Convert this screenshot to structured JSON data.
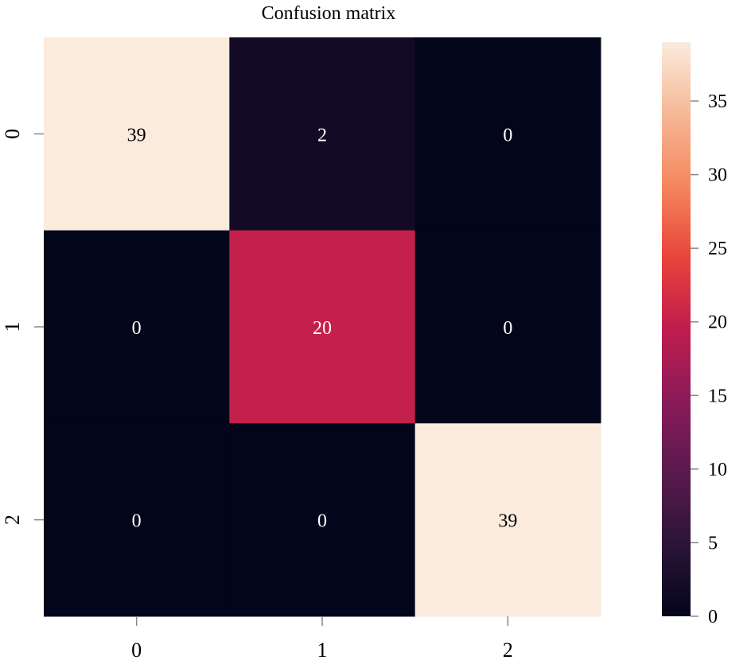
{
  "chart_data": {
    "type": "heatmap",
    "title": "Confusion matrix",
    "xlabel": "",
    "ylabel": "",
    "row_labels": [
      "0",
      "1",
      "2"
    ],
    "col_labels": [
      "0",
      "1",
      "2"
    ],
    "values": [
      [
        39,
        2,
        0
      ],
      [
        0,
        20,
        0
      ],
      [
        0,
        0,
        39
      ]
    ],
    "annotations": [
      [
        "39",
        "2",
        "0"
      ],
      [
        "0",
        "20",
        "0"
      ],
      [
        "0",
        "0",
        "39"
      ]
    ],
    "colorbar": {
      "min": 0,
      "max": 39,
      "ticks": [
        0,
        5,
        10,
        15,
        20,
        25,
        30,
        35
      ],
      "tick_labels": [
        "0",
        "5",
        "10",
        "15",
        "20",
        "25",
        "30",
        "35"
      ]
    },
    "colormap_stops": [
      "#03051a",
      "#2b1438",
      "#5a1a4e",
      "#8a1b5a",
      "#c01c4e",
      "#e8443a",
      "#f4875e",
      "#f6b896",
      "#faebdd"
    ]
  }
}
